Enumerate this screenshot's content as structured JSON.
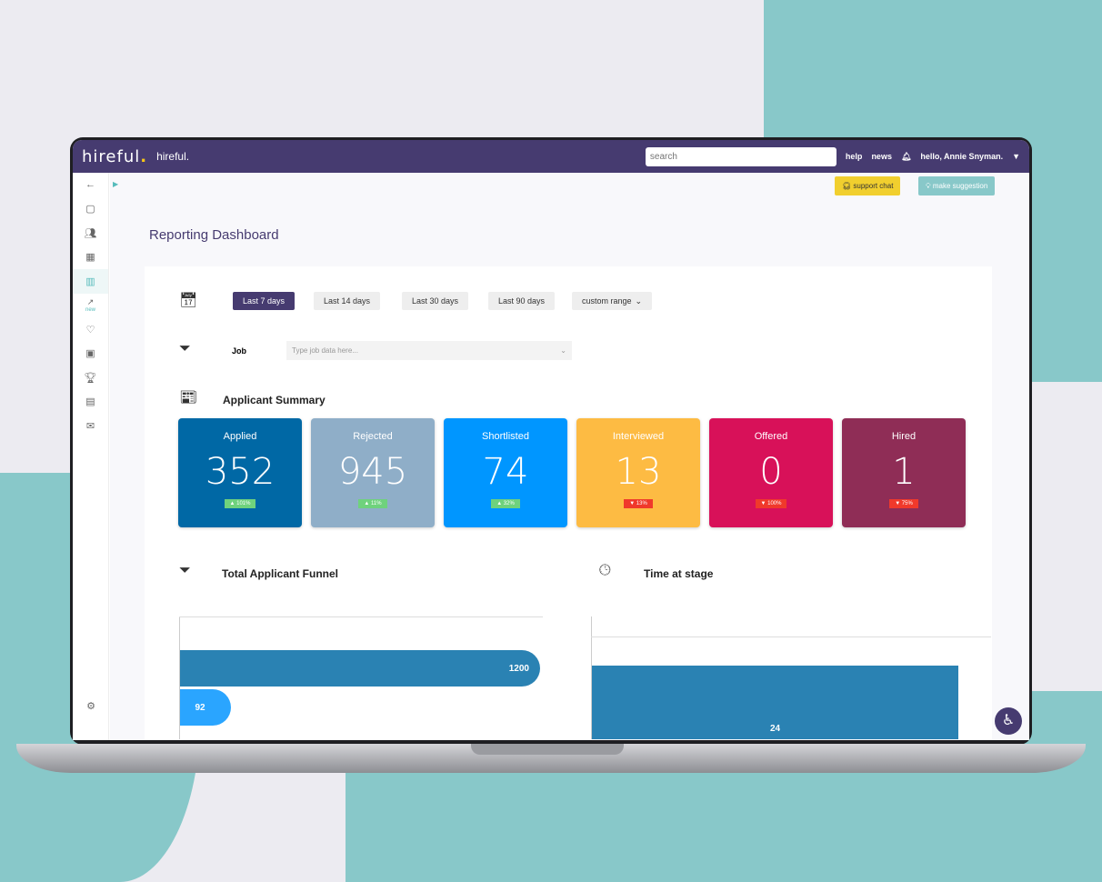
{
  "header": {
    "logo": "hireful",
    "logo_text": "hireful.",
    "search_placeholder": "search",
    "help": "help",
    "news": "news",
    "user": "hello, Annie Snyman."
  },
  "buttons": {
    "support": "support chat",
    "suggest": "make suggestion"
  },
  "page_title": "Reporting Dashboard",
  "sidebar": {
    "new_badge": "new"
  },
  "ranges": [
    {
      "label": "Last 7 days",
      "active": true
    },
    {
      "label": "Last 14 days"
    },
    {
      "label": "Last 30 days"
    },
    {
      "label": "Last 90 days"
    }
  ],
  "custom_range": "custom range",
  "job": {
    "label": "Job",
    "placeholder": "Type job data here..."
  },
  "summary": {
    "title": "Applicant Summary",
    "cards": [
      {
        "label": "Applied",
        "value": "352",
        "change": "101%",
        "dir": "up",
        "color": "#0068a5"
      },
      {
        "label": "Rejected",
        "value": "945",
        "change": "11%",
        "dir": "up",
        "color": "#8faec8"
      },
      {
        "label": "Shortlisted",
        "value": "74",
        "change": "32%",
        "dir": "up",
        "color": "#0096ff"
      },
      {
        "label": "Interviewed",
        "value": "13",
        "change": "13%",
        "dir": "down",
        "color": "#fdbb43"
      },
      {
        "label": "Offered",
        "value": "0",
        "change": "100%",
        "dir": "down",
        "color": "#d81159"
      },
      {
        "label": "Hired",
        "value": "1",
        "change": "75%",
        "dir": "down",
        "color": "#8f2d56"
      }
    ]
  },
  "funnel": {
    "title": "Total Applicant Funnel",
    "values": [
      "1200",
      "92"
    ]
  },
  "time_at_stage": {
    "title": "Time at stage",
    "values": [
      "24"
    ]
  }
}
